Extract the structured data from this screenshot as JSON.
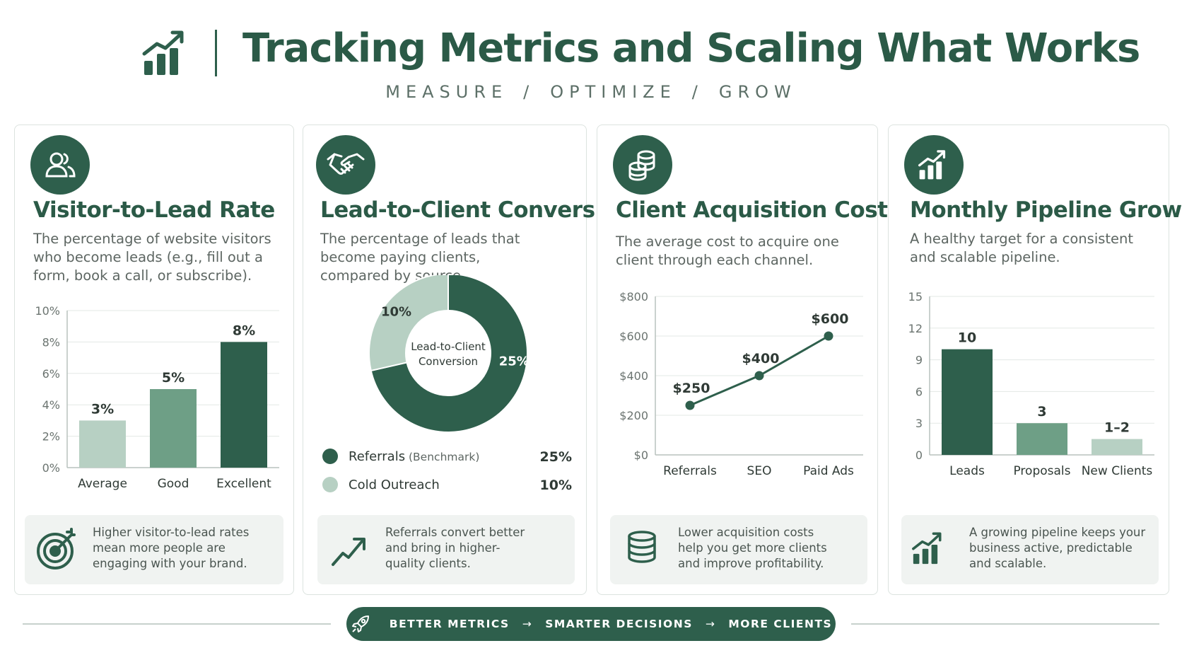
{
  "header": {
    "title": "Tracking Metrics and Scaling What Works",
    "tagline": [
      "MEASURE",
      "OPTIMIZE",
      "GROW"
    ],
    "separator": "/",
    "logo_icon": "growth-chart-icon"
  },
  "colors": {
    "dark": "#2e5f4c",
    "medium": "#6e9f86",
    "light": "#b7d0c3",
    "callout_bg": "#f0f3f1"
  },
  "cards": [
    {
      "title": "Visitor-to-Lead Rate",
      "icon": "users-icon",
      "description": "The percentage of website visitors who become leads (e.g., fill out a form, book a call, or subscribe).",
      "callout": "Higher visitor-to-lead rates mean more people are engaging with your brand.",
      "callout_icon": "target-icon"
    },
    {
      "title": "Lead-to-Client Conversion",
      "icon": "handshake-icon",
      "description": "The percentage of leads that become paying clients, compared by source.",
      "callout": "Referrals convert better and bring in higher-quality clients.",
      "callout_icon": "trend-up-icon"
    },
    {
      "title": "Client Acquisition Cost",
      "icon": "coins-icon",
      "description": "The average cost to acquire one client through each channel.",
      "callout": "Lower acquisition costs help you get more clients and improve profitability.",
      "callout_icon": "coins-stack-icon"
    },
    {
      "title": "Monthly Pipeline Growth",
      "icon": "growth-chart-icon",
      "description": "A healthy target for a consistent and scalable pipeline.",
      "callout": "A growing pipeline keeps your business active, predictable and scalable.",
      "callout_icon": "growth-chart-icon"
    }
  ],
  "chart_data": [
    {
      "type": "bar",
      "categories": [
        "Average",
        "Good",
        "Excellent"
      ],
      "values": [
        3,
        5,
        8
      ],
      "labels": [
        "3%",
        "5%",
        "8%"
      ],
      "ylim": [
        0,
        10
      ],
      "yticks": [
        "0%",
        "2%",
        "4%",
        "6%",
        "8%",
        "10%"
      ],
      "grid": true
    },
    {
      "type": "pie",
      "center_label": "Lead-to-Client Conversion",
      "slices": [
        {
          "name": "Referrals",
          "value": 25,
          "label": "25%"
        },
        {
          "name": "Cold Outreach",
          "value": 10,
          "label": "10%"
        }
      ],
      "legend": [
        {
          "name": "Referrals",
          "note": "(Benchmark)",
          "value": "25%"
        },
        {
          "name": "Cold Outreach",
          "note": "",
          "value": "10%"
        }
      ],
      "legend_placement": "bottom"
    },
    {
      "type": "line",
      "categories": [
        "Referrals",
        "SEO",
        "Paid Ads"
      ],
      "values": [
        250,
        400,
        600
      ],
      "labels": [
        "$250",
        "$400",
        "$600"
      ],
      "ylim": [
        0,
        800
      ],
      "yticks": [
        "$0",
        "$200",
        "$400",
        "$600",
        "$800"
      ],
      "grid": true
    },
    {
      "type": "bar",
      "categories": [
        "Leads",
        "Proposals",
        "New Clients"
      ],
      "values": [
        10,
        3,
        1.5
      ],
      "labels": [
        "10",
        "3",
        "1–2"
      ],
      "ylim": [
        0,
        15
      ],
      "yticks": [
        "0",
        "3",
        "6",
        "9",
        "12",
        "15"
      ],
      "grid": true
    }
  ],
  "footer": {
    "steps": [
      "BETTER METRICS",
      "SMARTER DECISIONS",
      "MORE CLIENTS"
    ],
    "arrow": "→",
    "icon": "rocket-icon"
  }
}
